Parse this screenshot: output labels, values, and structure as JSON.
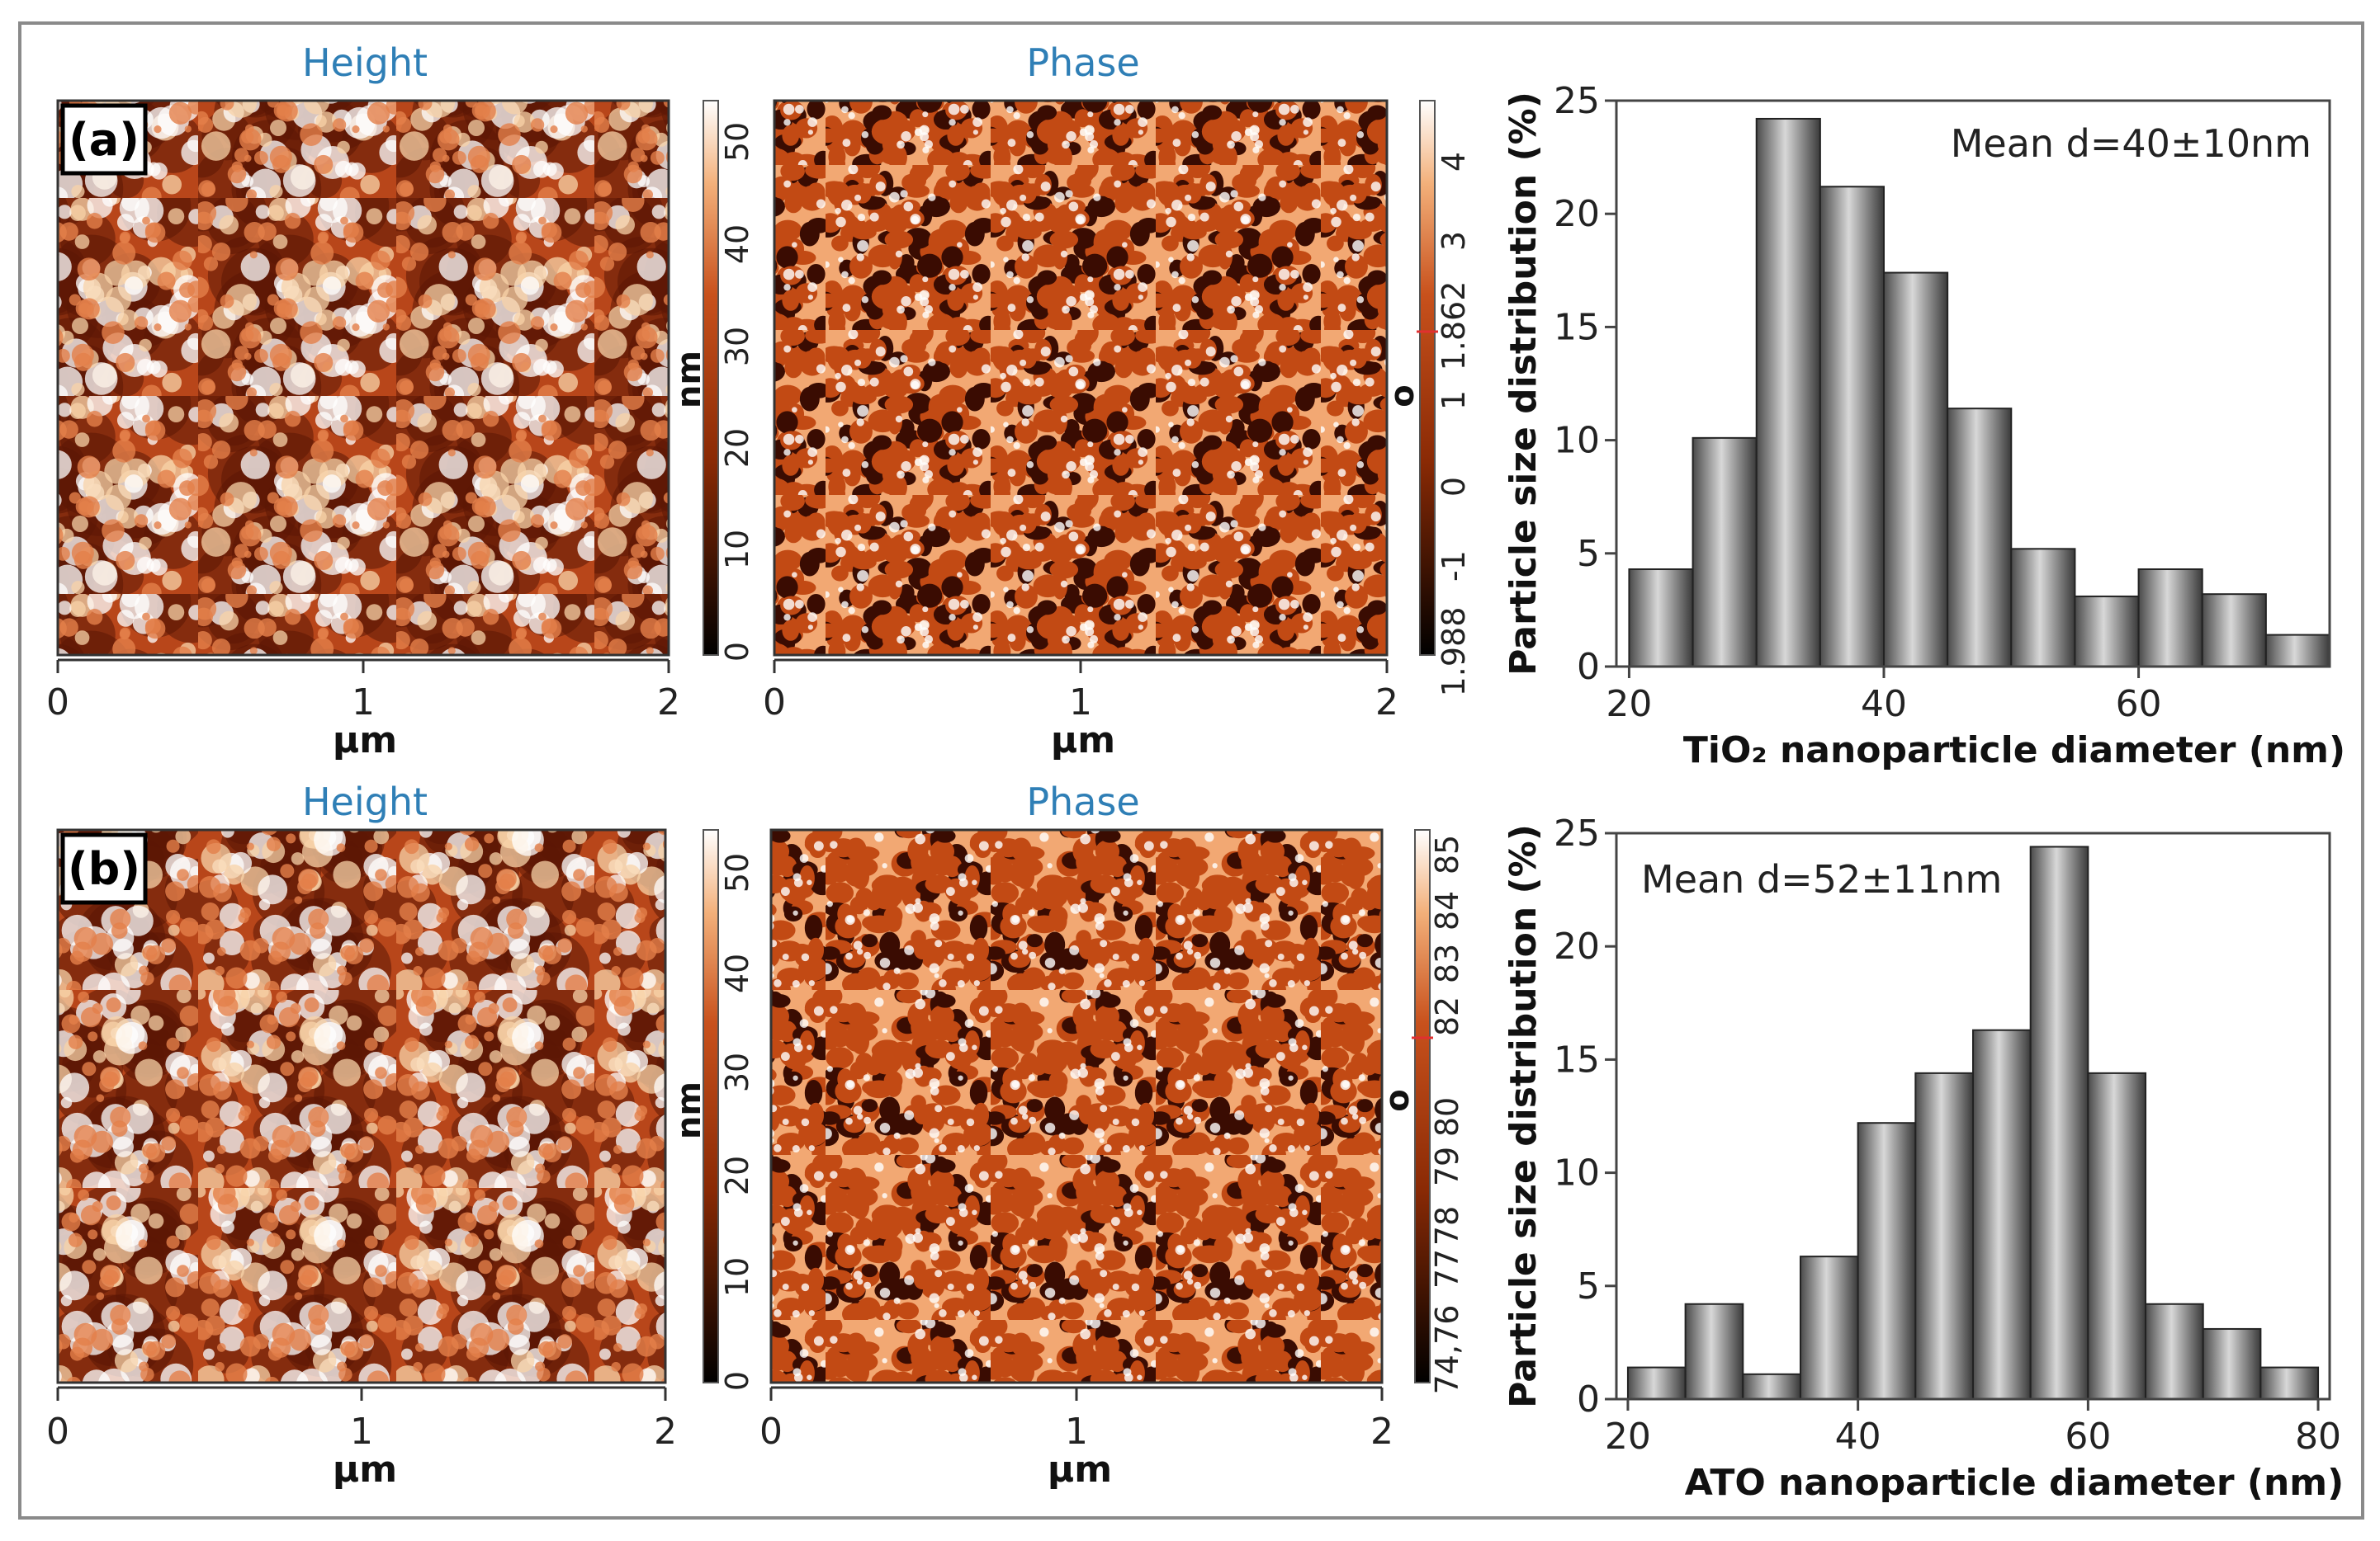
{
  "colors": {
    "afm_dark": "#2a0800",
    "afm_mid": "#c8511c",
    "afm_light": "#fff0de",
    "bar_dark": "#4a4a4a",
    "bar_light": "#d8d8d8",
    "title_blue": "#2f7fb6"
  },
  "rows": [
    {
      "label": "(a)",
      "height": {
        "title": "Height",
        "x_ticks": [
          "0",
          "1",
          "2"
        ],
        "x_unit": "µm",
        "cb_ticks": [
          "0",
          "10",
          "20",
          "30",
          "40",
          "50"
        ],
        "cb_unit": "nm"
      },
      "phase": {
        "title": "Phase",
        "x_ticks": [
          "0",
          "1",
          "2"
        ],
        "x_unit": "µm",
        "cb_ticks": [
          "1.988",
          "-1",
          "0",
          "1",
          "1.862",
          "3",
          "4"
        ],
        "cb_unit": "o"
      }
    },
    {
      "label": "(b)",
      "height": {
        "title": "Height",
        "x_ticks": [
          "0",
          "1",
          "2"
        ],
        "x_unit": "µm",
        "cb_ticks": [
          "0",
          "10",
          "20",
          "30",
          "40",
          "50"
        ],
        "cb_unit": "nm"
      },
      "phase": {
        "title": "Phase",
        "x_ticks": [
          "0",
          "1",
          "2"
        ],
        "x_unit": "µm",
        "cb_ticks": [
          "74,76",
          "77",
          "78",
          "79",
          "80",
          "82",
          "83",
          "84",
          "85"
        ],
        "cb_unit": "o"
      }
    }
  ],
  "chart_data": [
    {
      "type": "bar",
      "title": "",
      "xlabel": "TiO₂ nanoparticle diameter (nm)",
      "ylabel": "Particle size distribution (%)",
      "annotation": "Mean d=40±10nm",
      "bin_edges": [
        20,
        25,
        30,
        35,
        40,
        45,
        50,
        55,
        60,
        65,
        70,
        75
      ],
      "values": [
        4.3,
        10.1,
        24.2,
        21.2,
        17.4,
        11.4,
        5.2,
        3.1,
        4.3,
        3.2,
        1.4
      ],
      "xlim": [
        19,
        75
      ],
      "ylim": [
        0,
        25
      ],
      "x_ticks": [
        20,
        40,
        60
      ],
      "y_ticks": [
        0,
        5,
        10,
        15,
        20,
        25
      ]
    },
    {
      "type": "bar",
      "title": "",
      "xlabel": "ATO nanoparticle diameter (nm)",
      "ylabel": "Particle size distribution (%)",
      "annotation": "Mean d=52±11nm",
      "bin_edges": [
        20,
        25,
        30,
        35,
        40,
        45,
        50,
        55,
        60,
        65,
        70,
        75,
        80
      ],
      "values": [
        1.4,
        4.2,
        1.1,
        6.3,
        12.2,
        14.4,
        16.3,
        24.4,
        14.4,
        4.2,
        3.1,
        1.4
      ],
      "xlim": [
        19,
        81
      ],
      "ylim": [
        0,
        25
      ],
      "x_ticks": [
        20,
        40,
        60,
        80
      ],
      "y_ticks": [
        0,
        5,
        10,
        15,
        20,
        25
      ]
    }
  ]
}
